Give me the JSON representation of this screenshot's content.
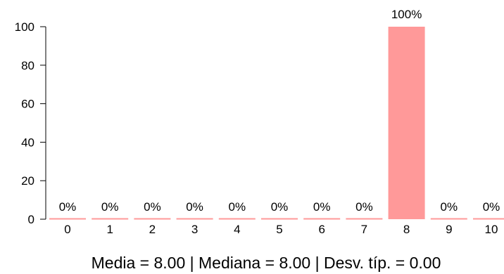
{
  "chart_data": {
    "type": "bar",
    "categories": [
      "0",
      "1",
      "2",
      "3",
      "4",
      "5",
      "6",
      "7",
      "8",
      "9",
      "10"
    ],
    "values": [
      0,
      0,
      0,
      0,
      0,
      0,
      0,
      0,
      100,
      0,
      0
    ],
    "data_labels": [
      "0%",
      "0%",
      "0%",
      "0%",
      "0%",
      "0%",
      "0%",
      "0%",
      "100%",
      "0%",
      "0%"
    ],
    "ylim": [
      0,
      100
    ],
    "yticks": [
      "0",
      "20",
      "40",
      "60",
      "80",
      "100"
    ],
    "bar_color": "#ff9999",
    "grid": false
  },
  "summary": "Media =  8.00  | Mediana =  8.00  | Desv. típ. =  0.00"
}
